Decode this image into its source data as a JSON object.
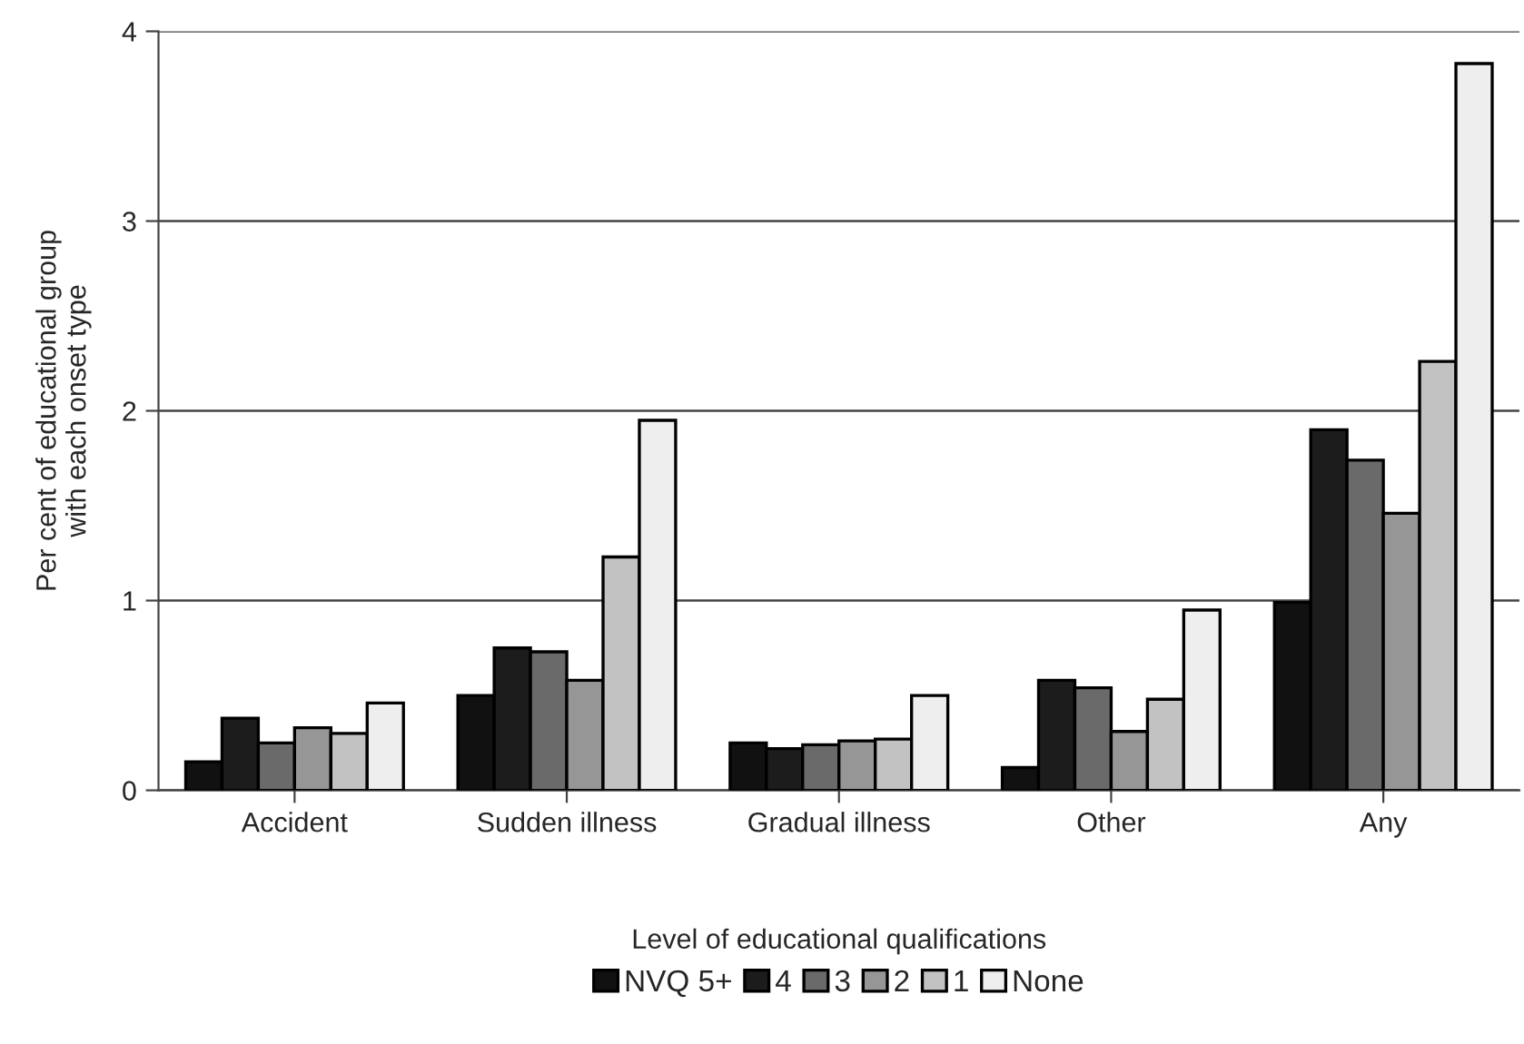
{
  "chart_data": {
    "type": "bar",
    "xlabel": "Level of educational qualifications",
    "ylabel": "Per cent of educational group\nwith each onset type",
    "categories": [
      "Accident",
      "Sudden illness",
      "Gradual illness",
      "Other",
      "Any"
    ],
    "series": [
      {
        "name": "NVQ 5+",
        "color": "#111111",
        "values": [
          0.15,
          0.5,
          0.25,
          0.12,
          0.99
        ]
      },
      {
        "name": "4",
        "color": "#1c1c1c",
        "values": [
          0.38,
          0.75,
          0.22,
          0.58,
          1.9
        ]
      },
      {
        "name": "3",
        "color": "#6a6a6a",
        "values": [
          0.25,
          0.73,
          0.24,
          0.54,
          1.74
        ]
      },
      {
        "name": "2",
        "color": "#969696",
        "values": [
          0.33,
          0.58,
          0.26,
          0.31,
          1.46
        ]
      },
      {
        "name": "1",
        "color": "#c2c2c2",
        "values": [
          0.3,
          1.23,
          0.27,
          0.48,
          2.26
        ]
      },
      {
        "name": "None",
        "color": "#eeeeee",
        "values": [
          0.46,
          1.95,
          0.5,
          0.95,
          3.83
        ]
      }
    ],
    "ylim": [
      0,
      4
    ],
    "yticks": [
      0,
      1,
      2,
      3,
      4
    ],
    "grid": "y",
    "legend": "bottom"
  }
}
